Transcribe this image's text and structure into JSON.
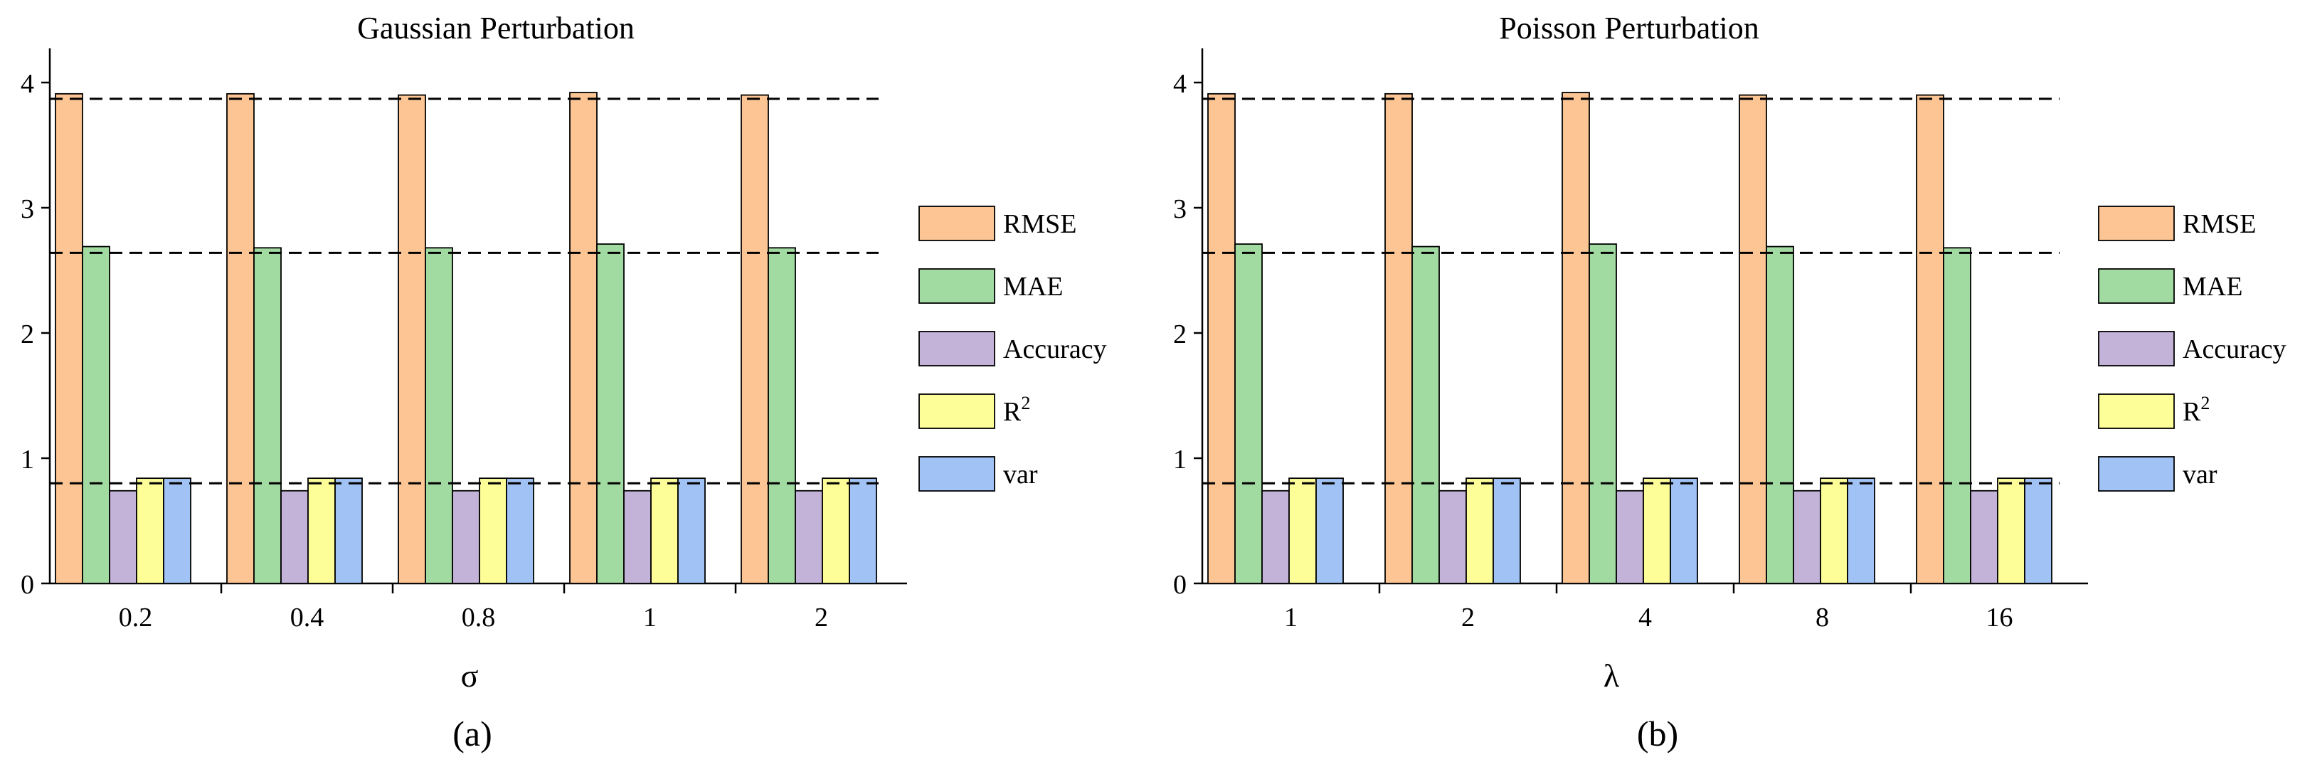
{
  "chart_data": [
    {
      "type": "bar",
      "title": "Gaussian Perturbation",
      "xlabel": "σ",
      "ylabel": "",
      "caption": "(a)",
      "categories": [
        "0.2",
        "0.4",
        "0.8",
        "1",
        "2"
      ],
      "ylim": [
        0,
        4.25
      ],
      "yticks": [
        "0",
        "1",
        "2",
        "3",
        "4"
      ],
      "legend_position": "right",
      "series": [
        {
          "name": "RMSE",
          "values": [
            3.91,
            3.91,
            3.9,
            3.92,
            3.9
          ]
        },
        {
          "name": "MAE",
          "values": [
            2.69,
            2.68,
            2.68,
            2.71,
            2.68
          ]
        },
        {
          "name": "Accuracy",
          "values": [
            0.74,
            0.74,
            0.74,
            0.74,
            0.74
          ]
        },
        {
          "name": "R2",
          "values": [
            0.84,
            0.84,
            0.84,
            0.84,
            0.84
          ]
        },
        {
          "name": "var",
          "values": [
            0.84,
            0.84,
            0.84,
            0.84,
            0.84
          ]
        }
      ],
      "reference_lines": [
        3.87,
        2.64,
        0.8
      ]
    },
    {
      "type": "bar",
      "title": "Poisson Perturbation",
      "xlabel": "λ",
      "ylabel": "",
      "caption": "(b)",
      "categories": [
        "1",
        "2",
        "4",
        "8",
        "16"
      ],
      "ylim": [
        0,
        4.25
      ],
      "yticks": [
        "0",
        "1",
        "2",
        "3",
        "4"
      ],
      "legend_position": "right",
      "series": [
        {
          "name": "RMSE",
          "values": [
            3.91,
            3.91,
            3.92,
            3.9,
            3.9
          ]
        },
        {
          "name": "MAE",
          "values": [
            2.71,
            2.69,
            2.71,
            2.69,
            2.68
          ]
        },
        {
          "name": "Accuracy",
          "values": [
            0.74,
            0.74,
            0.74,
            0.74,
            0.74
          ]
        },
        {
          "name": "R2",
          "values": [
            0.84,
            0.84,
            0.84,
            0.84,
            0.84
          ]
        },
        {
          "name": "var",
          "values": [
            0.84,
            0.84,
            0.84,
            0.84,
            0.84
          ]
        }
      ],
      "reference_lines": [
        3.87,
        2.64,
        0.8
      ]
    }
  ],
  "series_colors": [
    "#fdc593",
    "#a2dba1",
    "#c3b3d8",
    "#fefe99",
    "#a0c2f5"
  ]
}
